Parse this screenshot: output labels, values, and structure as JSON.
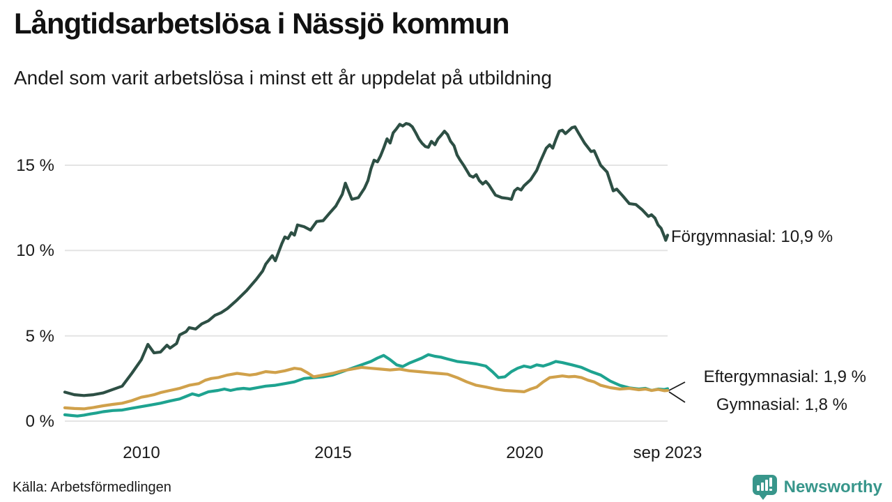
{
  "header": {
    "title": "Långtidsarbetslösa i Nässjö kommun",
    "subtitle": "Andel som varit arbetslösa i minst ett år uppdelat på utbildning"
  },
  "footer": {
    "source": "Källa: Arbetsförmedlingen"
  },
  "branding": {
    "logo_text": "Newsworthy",
    "logo_color": "#38968b",
    "logo_icon": "bar-chart-speech-bubble-pin"
  },
  "colors": {
    "forgymnasial": "#2d4f44",
    "eftergymnasial": "#1ea390",
    "gymnasial": "#d0a14b",
    "grid": "#e4e4e4",
    "text": "#1a1a1a"
  },
  "chart_data": {
    "type": "line",
    "title": "Långtidsarbetslösa i Nässjö kommun",
    "subtitle": "Andel som varit arbetslösa i minst ett år uppdelat på utbildning",
    "source": "Källa: Arbetsförmedlingen",
    "legend_position": "end-of-line-labels",
    "grid": true,
    "x_axis": {
      "range": [
        2008.0,
        2023.75
      ],
      "ticks": [
        {
          "label": "2010",
          "value": 2010
        },
        {
          "label": "2015",
          "value": 2015
        },
        {
          "label": "2020",
          "value": 2020
        },
        {
          "label": "sep 2023",
          "value": 2023.75
        }
      ]
    },
    "y_axis": {
      "range": [
        0,
        17.8
      ],
      "unit": "%",
      "ticks": [
        {
          "label": "0 %",
          "value": 0
        },
        {
          "label": "5 %",
          "value": 5
        },
        {
          "label": "10 %",
          "value": 10
        },
        {
          "label": "15 %",
          "value": 15
        }
      ]
    },
    "series": [
      {
        "id": "forgymnasial",
        "name": "Förgymnasial",
        "color": "#2d4f44",
        "end_value": "10,9 %",
        "annotation": "Förgymnasial: 10,9 %",
        "points": [
          [
            2008.0,
            1.7
          ],
          [
            2008.25,
            1.55
          ],
          [
            2008.5,
            1.5
          ],
          [
            2008.75,
            1.55
          ],
          [
            2009.0,
            1.65
          ],
          [
            2009.25,
            1.85
          ],
          [
            2009.5,
            2.05
          ],
          [
            2009.75,
            2.8
          ],
          [
            2010.0,
            3.6
          ],
          [
            2010.17,
            4.5
          ],
          [
            2010.33,
            4.0
          ],
          [
            2010.5,
            4.05
          ],
          [
            2010.67,
            4.45
          ],
          [
            2010.75,
            4.28
          ],
          [
            2010.92,
            4.55
          ],
          [
            2011.0,
            5.05
          ],
          [
            2011.17,
            5.25
          ],
          [
            2011.25,
            5.48
          ],
          [
            2011.42,
            5.4
          ],
          [
            2011.58,
            5.7
          ],
          [
            2011.75,
            5.88
          ],
          [
            2011.92,
            6.2
          ],
          [
            2012.08,
            6.35
          ],
          [
            2012.25,
            6.6
          ],
          [
            2012.5,
            7.1
          ],
          [
            2012.75,
            7.65
          ],
          [
            2013.0,
            8.3
          ],
          [
            2013.17,
            8.8
          ],
          [
            2013.25,
            9.2
          ],
          [
            2013.42,
            9.7
          ],
          [
            2013.5,
            9.4
          ],
          [
            2013.67,
            10.4
          ],
          [
            2013.75,
            10.8
          ],
          [
            2013.83,
            10.7
          ],
          [
            2013.92,
            11.05
          ],
          [
            2014.0,
            10.9
          ],
          [
            2014.08,
            11.5
          ],
          [
            2014.25,
            11.4
          ],
          [
            2014.42,
            11.2
          ],
          [
            2014.58,
            11.7
          ],
          [
            2014.75,
            11.75
          ],
          [
            2014.92,
            12.2
          ],
          [
            2015.08,
            12.6
          ],
          [
            2015.25,
            13.3
          ],
          [
            2015.33,
            13.95
          ],
          [
            2015.5,
            13.0
          ],
          [
            2015.67,
            13.1
          ],
          [
            2015.83,
            13.65
          ],
          [
            2015.92,
            14.1
          ],
          [
            2016.0,
            14.8
          ],
          [
            2016.08,
            15.3
          ],
          [
            2016.17,
            15.2
          ],
          [
            2016.25,
            15.55
          ],
          [
            2016.33,
            16.0
          ],
          [
            2016.42,
            16.55
          ],
          [
            2016.5,
            16.3
          ],
          [
            2016.58,
            16.9
          ],
          [
            2016.67,
            17.15
          ],
          [
            2016.75,
            17.4
          ],
          [
            2016.83,
            17.3
          ],
          [
            2016.92,
            17.45
          ],
          [
            2017.0,
            17.4
          ],
          [
            2017.08,
            17.25
          ],
          [
            2017.17,
            16.9
          ],
          [
            2017.25,
            16.55
          ],
          [
            2017.33,
            16.3
          ],
          [
            2017.42,
            16.1
          ],
          [
            2017.5,
            16.05
          ],
          [
            2017.58,
            16.4
          ],
          [
            2017.67,
            16.2
          ],
          [
            2017.75,
            16.55
          ],
          [
            2017.83,
            16.75
          ],
          [
            2017.92,
            17.0
          ],
          [
            2018.0,
            16.8
          ],
          [
            2018.08,
            16.4
          ],
          [
            2018.17,
            16.15
          ],
          [
            2018.25,
            15.6
          ],
          [
            2018.33,
            15.3
          ],
          [
            2018.42,
            15.0
          ],
          [
            2018.5,
            14.7
          ],
          [
            2018.58,
            14.4
          ],
          [
            2018.67,
            14.3
          ],
          [
            2018.75,
            14.45
          ],
          [
            2018.83,
            14.1
          ],
          [
            2018.92,
            13.9
          ],
          [
            2019.0,
            14.05
          ],
          [
            2019.08,
            13.85
          ],
          [
            2019.25,
            13.25
          ],
          [
            2019.42,
            13.1
          ],
          [
            2019.58,
            13.05
          ],
          [
            2019.67,
            13.0
          ],
          [
            2019.75,
            13.5
          ],
          [
            2019.83,
            13.65
          ],
          [
            2019.92,
            13.55
          ],
          [
            2020.0,
            13.8
          ],
          [
            2020.17,
            14.15
          ],
          [
            2020.33,
            14.7
          ],
          [
            2020.42,
            15.2
          ],
          [
            2020.5,
            15.6
          ],
          [
            2020.58,
            16.0
          ],
          [
            2020.67,
            16.2
          ],
          [
            2020.75,
            16.0
          ],
          [
            2020.83,
            16.5
          ],
          [
            2020.92,
            17.0
          ],
          [
            2021.0,
            17.05
          ],
          [
            2021.08,
            16.85
          ],
          [
            2021.25,
            17.2
          ],
          [
            2021.33,
            17.25
          ],
          [
            2021.42,
            16.9
          ],
          [
            2021.58,
            16.3
          ],
          [
            2021.75,
            15.8
          ],
          [
            2021.83,
            15.85
          ],
          [
            2021.92,
            15.4
          ],
          [
            2022.0,
            15.0
          ],
          [
            2022.17,
            14.6
          ],
          [
            2022.33,
            13.5
          ],
          [
            2022.42,
            13.6
          ],
          [
            2022.58,
            13.2
          ],
          [
            2022.75,
            12.75
          ],
          [
            2022.92,
            12.7
          ],
          [
            2023.08,
            12.4
          ],
          [
            2023.25,
            12.0
          ],
          [
            2023.33,
            12.1
          ],
          [
            2023.42,
            11.9
          ],
          [
            2023.5,
            11.5
          ],
          [
            2023.58,
            11.3
          ],
          [
            2023.67,
            10.8
          ],
          [
            2023.7,
            10.6
          ],
          [
            2023.75,
            10.9
          ]
        ]
      },
      {
        "id": "eftergymnasial",
        "name": "Eftergymnasial",
        "color": "#1ea390",
        "end_value": "1,9 %",
        "annotation": "Eftergymnasial:  1,9 %",
        "points": [
          [
            2008.0,
            0.37
          ],
          [
            2008.17,
            0.33
          ],
          [
            2008.33,
            0.3
          ],
          [
            2008.5,
            0.35
          ],
          [
            2008.67,
            0.42
          ],
          [
            2008.83,
            0.48
          ],
          [
            2009.0,
            0.55
          ],
          [
            2009.25,
            0.62
          ],
          [
            2009.5,
            0.65
          ],
          [
            2009.75,
            0.75
          ],
          [
            2010.0,
            0.85
          ],
          [
            2010.25,
            0.95
          ],
          [
            2010.5,
            1.05
          ],
          [
            2010.75,
            1.18
          ],
          [
            2011.0,
            1.3
          ],
          [
            2011.17,
            1.45
          ],
          [
            2011.33,
            1.6
          ],
          [
            2011.5,
            1.5
          ],
          [
            2011.75,
            1.72
          ],
          [
            2012.0,
            1.8
          ],
          [
            2012.17,
            1.88
          ],
          [
            2012.33,
            1.8
          ],
          [
            2012.5,
            1.88
          ],
          [
            2012.67,
            1.92
          ],
          [
            2012.83,
            1.88
          ],
          [
            2013.0,
            1.95
          ],
          [
            2013.25,
            2.05
          ],
          [
            2013.5,
            2.1
          ],
          [
            2013.75,
            2.2
          ],
          [
            2014.0,
            2.3
          ],
          [
            2014.25,
            2.5
          ],
          [
            2014.5,
            2.55
          ],
          [
            2014.75,
            2.6
          ],
          [
            2015.0,
            2.7
          ],
          [
            2015.25,
            2.9
          ],
          [
            2015.5,
            3.1
          ],
          [
            2015.75,
            3.3
          ],
          [
            2016.0,
            3.5
          ],
          [
            2016.17,
            3.7
          ],
          [
            2016.33,
            3.85
          ],
          [
            2016.5,
            3.6
          ],
          [
            2016.67,
            3.3
          ],
          [
            2016.83,
            3.2
          ],
          [
            2017.0,
            3.4
          ],
          [
            2017.17,
            3.55
          ],
          [
            2017.33,
            3.7
          ],
          [
            2017.5,
            3.9
          ],
          [
            2017.67,
            3.8
          ],
          [
            2017.83,
            3.75
          ],
          [
            2018.0,
            3.64
          ],
          [
            2018.25,
            3.5
          ],
          [
            2018.5,
            3.43
          ],
          [
            2018.75,
            3.35
          ],
          [
            2019.0,
            3.23
          ],
          [
            2019.17,
            2.9
          ],
          [
            2019.33,
            2.55
          ],
          [
            2019.5,
            2.6
          ],
          [
            2019.67,
            2.9
          ],
          [
            2019.83,
            3.1
          ],
          [
            2020.0,
            3.23
          ],
          [
            2020.17,
            3.15
          ],
          [
            2020.33,
            3.3
          ],
          [
            2020.5,
            3.23
          ],
          [
            2020.67,
            3.35
          ],
          [
            2020.83,
            3.5
          ],
          [
            2021.0,
            3.43
          ],
          [
            2021.25,
            3.3
          ],
          [
            2021.5,
            3.15
          ],
          [
            2021.75,
            2.9
          ],
          [
            2022.0,
            2.7
          ],
          [
            2022.25,
            2.35
          ],
          [
            2022.5,
            2.1
          ],
          [
            2022.75,
            1.95
          ],
          [
            2023.0,
            1.88
          ],
          [
            2023.17,
            1.92
          ],
          [
            2023.33,
            1.8
          ],
          [
            2023.5,
            1.88
          ],
          [
            2023.67,
            1.85
          ],
          [
            2023.75,
            1.9
          ]
        ]
      },
      {
        "id": "gymnasial",
        "name": "Gymnasial",
        "color": "#d0a14b",
        "end_value": "1,8 %",
        "annotation": "Gymnasial:  1,8 %",
        "points": [
          [
            2008.0,
            0.78
          ],
          [
            2008.25,
            0.74
          ],
          [
            2008.5,
            0.72
          ],
          [
            2008.75,
            0.8
          ],
          [
            2009.0,
            0.9
          ],
          [
            2009.25,
            0.98
          ],
          [
            2009.5,
            1.05
          ],
          [
            2009.75,
            1.2
          ],
          [
            2010.0,
            1.4
          ],
          [
            2010.17,
            1.47
          ],
          [
            2010.33,
            1.55
          ],
          [
            2010.5,
            1.67
          ],
          [
            2010.75,
            1.8
          ],
          [
            2011.0,
            1.92
          ],
          [
            2011.25,
            2.1
          ],
          [
            2011.5,
            2.2
          ],
          [
            2011.67,
            2.4
          ],
          [
            2011.83,
            2.5
          ],
          [
            2012.0,
            2.55
          ],
          [
            2012.25,
            2.7
          ],
          [
            2012.5,
            2.8
          ],
          [
            2012.67,
            2.75
          ],
          [
            2012.83,
            2.7
          ],
          [
            2013.0,
            2.75
          ],
          [
            2013.25,
            2.9
          ],
          [
            2013.5,
            2.85
          ],
          [
            2013.75,
            2.95
          ],
          [
            2014.0,
            3.1
          ],
          [
            2014.17,
            3.05
          ],
          [
            2014.33,
            2.85
          ],
          [
            2014.5,
            2.6
          ],
          [
            2014.75,
            2.7
          ],
          [
            2015.0,
            2.8
          ],
          [
            2015.25,
            2.95
          ],
          [
            2015.5,
            3.05
          ],
          [
            2015.75,
            3.15
          ],
          [
            2016.0,
            3.1
          ],
          [
            2016.25,
            3.05
          ],
          [
            2016.5,
            3.0
          ],
          [
            2016.75,
            3.05
          ],
          [
            2017.0,
            2.95
          ],
          [
            2017.25,
            2.9
          ],
          [
            2017.5,
            2.85
          ],
          [
            2017.75,
            2.8
          ],
          [
            2018.0,
            2.75
          ],
          [
            2018.25,
            2.55
          ],
          [
            2018.5,
            2.3
          ],
          [
            2018.75,
            2.1
          ],
          [
            2019.0,
            2.0
          ],
          [
            2019.25,
            1.88
          ],
          [
            2019.5,
            1.8
          ],
          [
            2019.75,
            1.76
          ],
          [
            2020.0,
            1.72
          ],
          [
            2020.17,
            1.88
          ],
          [
            2020.33,
            2.0
          ],
          [
            2020.5,
            2.3
          ],
          [
            2020.67,
            2.55
          ],
          [
            2020.83,
            2.6
          ],
          [
            2021.0,
            2.65
          ],
          [
            2021.17,
            2.6
          ],
          [
            2021.33,
            2.62
          ],
          [
            2021.5,
            2.55
          ],
          [
            2021.67,
            2.4
          ],
          [
            2021.83,
            2.3
          ],
          [
            2022.0,
            2.1
          ],
          [
            2022.25,
            1.96
          ],
          [
            2022.5,
            1.88
          ],
          [
            2022.75,
            1.92
          ],
          [
            2023.0,
            1.84
          ],
          [
            2023.17,
            1.88
          ],
          [
            2023.33,
            1.8
          ],
          [
            2023.5,
            1.86
          ],
          [
            2023.67,
            1.78
          ],
          [
            2023.75,
            1.8
          ]
        ]
      }
    ]
  }
}
